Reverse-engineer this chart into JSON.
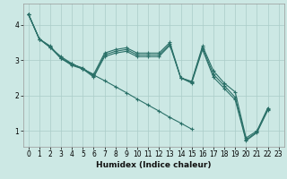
{
  "xlabel": "Humidex (Indice chaleur)",
  "background_color": "#cce8e4",
  "grid_color": "#aaccc8",
  "line_color": "#2a7068",
  "x_ticks": [
    0,
    1,
    2,
    3,
    4,
    5,
    6,
    7,
    8,
    9,
    10,
    11,
    12,
    13,
    14,
    15,
    16,
    17,
    18,
    19,
    20,
    21,
    22,
    23
  ],
  "y_ticks": [
    1,
    2,
    3,
    4
  ],
  "xlim": [
    -0.5,
    23.5
  ],
  "ylim": [
    0.55,
    4.6
  ],
  "lines": [
    {
      "x": [
        0,
        1,
        2,
        3,
        4,
        5,
        6,
        7,
        8,
        9,
        10,
        11,
        12,
        13,
        14,
        15,
        16,
        17,
        18,
        19,
        20,
        21,
        22
      ],
      "y": [
        4.3,
        3.6,
        3.4,
        3.05,
        2.9,
        2.75,
        2.6,
        3.2,
        3.3,
        3.35,
        3.2,
        3.2,
        3.2,
        3.5,
        2.5,
        2.4,
        3.4,
        2.7,
        2.35,
        2.1,
        0.8,
        1.0,
        1.65
      ]
    },
    {
      "x": [
        0,
        1,
        2,
        3,
        4,
        5,
        6,
        7,
        8,
        9,
        10,
        11,
        12,
        13,
        14,
        15,
        16,
        17,
        18,
        19,
        20,
        21,
        22
      ],
      "y": [
        4.3,
        3.6,
        3.38,
        3.05,
        2.88,
        2.78,
        2.55,
        3.15,
        3.25,
        3.3,
        3.15,
        3.15,
        3.15,
        3.45,
        2.5,
        2.38,
        3.35,
        2.6,
        2.28,
        1.95,
        0.75,
        0.97,
        1.62
      ]
    },
    {
      "x": [
        0,
        1,
        2,
        3,
        4,
        5,
        6,
        7,
        8,
        9,
        10,
        11,
        12,
        13,
        14,
        15,
        16,
        17,
        18,
        19,
        20,
        21,
        22
      ],
      "y": [
        4.3,
        3.6,
        3.36,
        3.05,
        2.85,
        2.75,
        2.52,
        3.1,
        3.2,
        3.25,
        3.1,
        3.1,
        3.1,
        3.42,
        2.5,
        2.35,
        3.3,
        2.52,
        2.2,
        1.88,
        0.72,
        0.95,
        1.58
      ]
    },
    {
      "x": [
        0,
        1,
        2,
        3,
        4,
        5,
        6,
        7,
        8,
        9,
        10,
        11,
        12,
        13,
        14,
        15,
        16,
        17,
        18,
        19,
        20,
        21,
        22
      ],
      "y": [
        4.3,
        3.6,
        3.36,
        3.1,
        2.9,
        2.75,
        2.58,
        2.42,
        2.25,
        2.08,
        1.9,
        1.73,
        1.56,
        1.38,
        1.22,
        1.05,
        null,
        null,
        null,
        null,
        null,
        null,
        null
      ]
    }
  ],
  "marker": "+",
  "markersize": 3.5,
  "markeredgewidth": 0.8,
  "linewidth": 0.8,
  "xlabel_fontsize": 6.5,
  "tick_fontsize": 5.5
}
